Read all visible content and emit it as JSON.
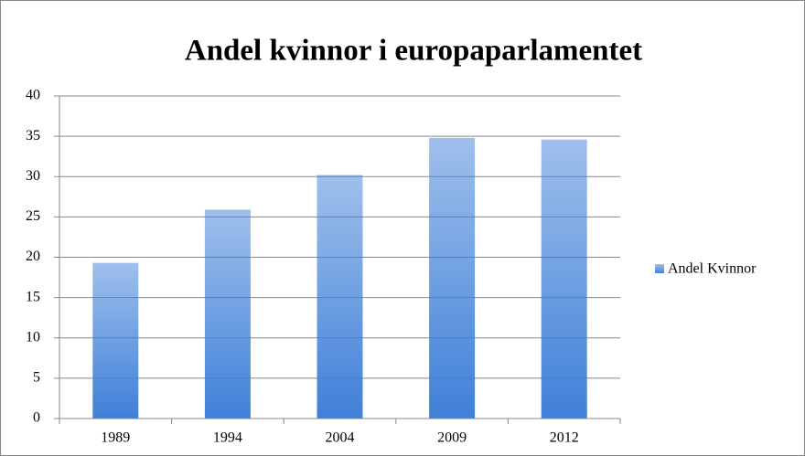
{
  "chart_data": {
    "type": "bar",
    "title": "Andel kvinnor i europaparlamentet",
    "categories": [
      "1989",
      "1994",
      "2004",
      "2009",
      "2012"
    ],
    "series": [
      {
        "name": "Andel Kvinnor",
        "color": "#3f80d8",
        "values": [
          19.3,
          25.9,
          30.2,
          34.8,
          34.6
        ]
      }
    ],
    "ylim": [
      0,
      40
    ],
    "yticks": [
      0,
      5,
      10,
      15,
      20,
      25,
      30,
      35,
      40
    ],
    "grid": true,
    "legend": "right"
  }
}
